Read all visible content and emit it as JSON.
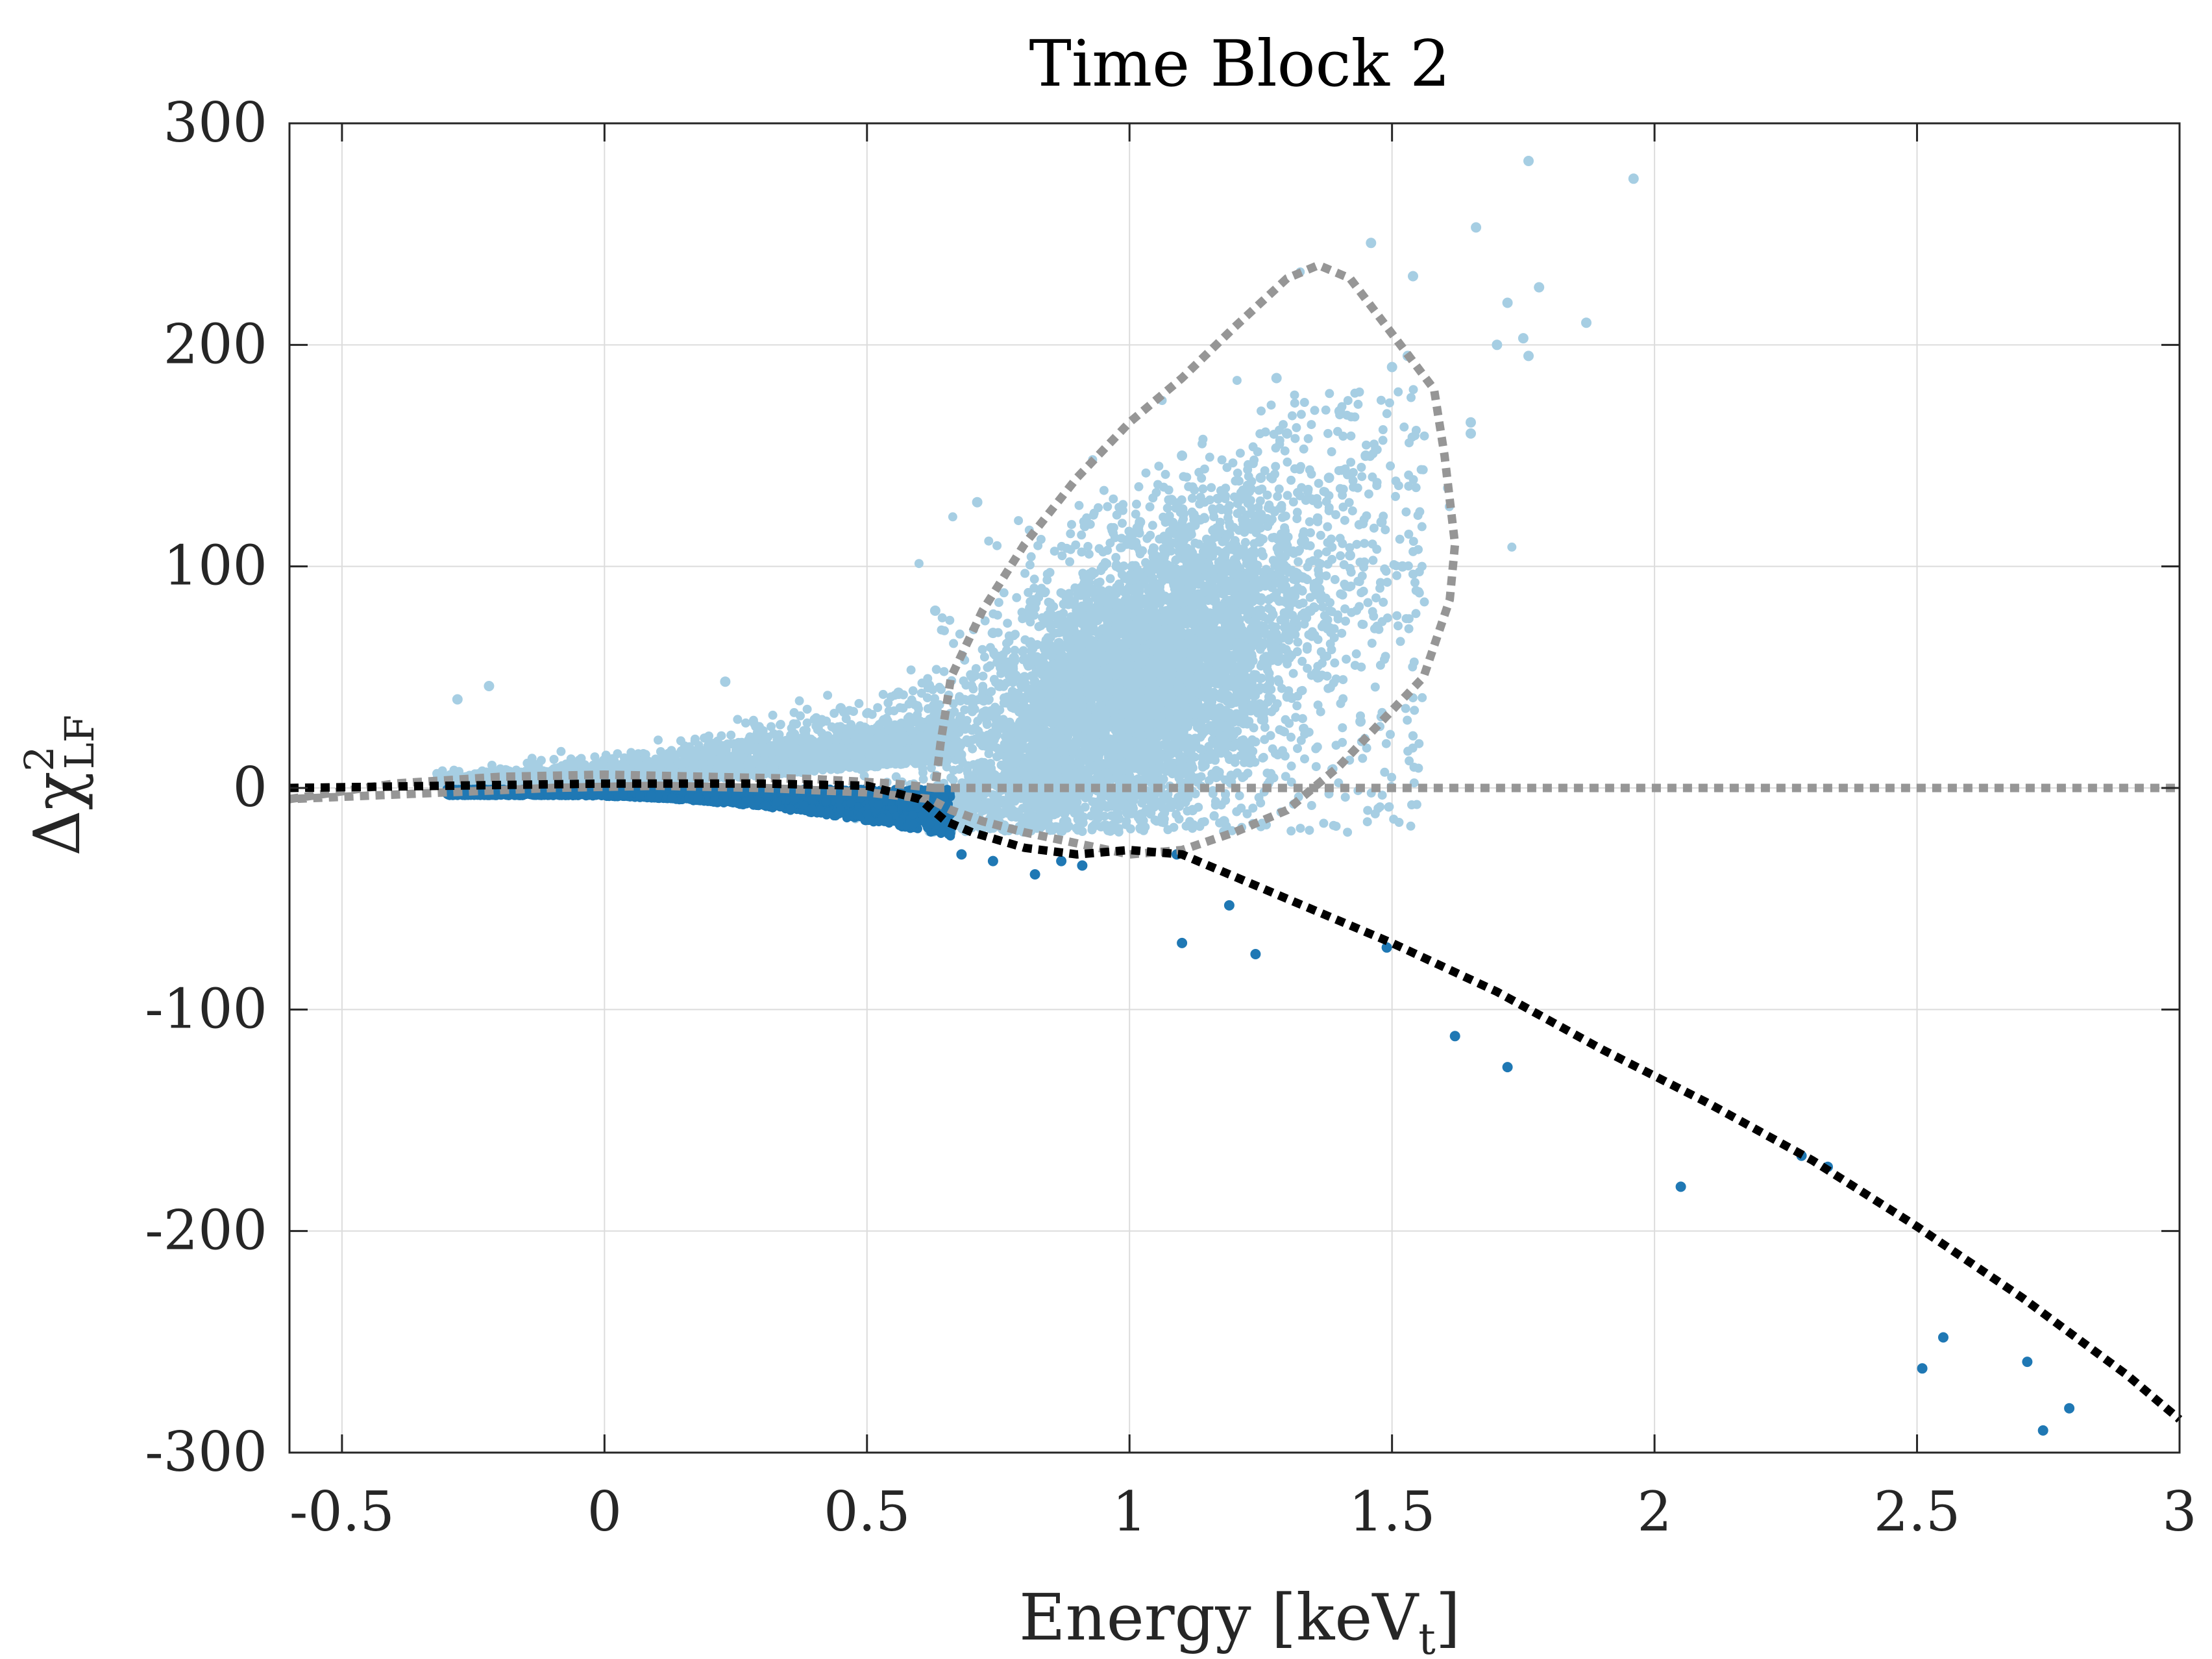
{
  "chart_data": {
    "type": "scatter",
    "title": "Time Block 2",
    "xlabel": "Energy [keV",
    "xlabel_subscript": "t",
    "xlabel_close": "]",
    "ylabel": "Δχ",
    "ylabel_superscript": "2",
    "ylabel_subscript": "LF",
    "xlim": [
      -0.6,
      3.0
    ],
    "ylim": [
      -300,
      300
    ],
    "xticks": [
      -0.5,
      0,
      0.5,
      1,
      1.5,
      2,
      2.5,
      3
    ],
    "xtick_labels": [
      "-0.5",
      "0",
      "0.5",
      "1",
      "1.5",
      "2",
      "2.5",
      "3"
    ],
    "yticks": [
      -300,
      -200,
      -100,
      0,
      100,
      200,
      300
    ],
    "ytick_labels": [
      "-300",
      "-200",
      "-100",
      "0",
      "100",
      "200",
      "300"
    ],
    "grid": true,
    "colors": {
      "light_points": "#a6cee3",
      "dark_points": "#1f78b4",
      "contour": "#969696",
      "cut_line": "#000000",
      "grid": "#dcdcdc",
      "axis": "#262626"
    },
    "series": [
      {
        "name": "accepted events (light blue)",
        "color": "#a6cee3",
        "x": [
          1.96,
          1.76,
          1.46,
          1.66,
          1.54,
          1.78,
          1.87,
          1.72,
          1.7,
          1.75,
          1.76,
          1.53,
          1.5,
          1.65,
          1.65,
          0.71,
          0.63,
          0.74,
          0.7,
          -0.22,
          0.23,
          -0.28,
          0.45,
          0.56,
          1.4,
          1.45,
          1.3,
          1.28,
          1.25,
          1.1,
          1.08,
          0.95,
          1.02,
          1.15,
          1.35,
          1.48,
          1.52,
          1.38,
          1.42,
          1.33,
          1.2,
          0.9,
          0.85,
          0.8,
          0.78,
          0.88,
          0.93,
          1.0,
          1.05,
          1.12,
          1.18,
          1.22,
          1.26,
          1.31,
          1.36,
          1.44,
          0.68,
          0.72,
          0.76,
          0.82
        ],
        "y": [
          275,
          283,
          246,
          253,
          231,
          226,
          210,
          219,
          200,
          203,
          195,
          195,
          190,
          165,
          160,
          129,
          80,
          70,
          40,
          46,
          48,
          40,
          36,
          43,
          170,
          150,
          160,
          185,
          140,
          150,
          130,
          100,
          120,
          110,
          130,
          120,
          100,
          140,
          105,
          95,
          90,
          80,
          60,
          50,
          40,
          30,
          20,
          10,
          0,
          -10,
          -15,
          60,
          45,
          70,
          50,
          30,
          -5,
          -10,
          10,
          20
        ]
      },
      {
        "name": "rejected events (dark blue)",
        "color": "#1f78b4",
        "x": [
          0.68,
          0.74,
          0.82,
          0.87,
          0.91,
          1.09,
          1.1,
          1.19,
          1.24,
          1.49,
          1.62,
          1.72,
          2.05,
          2.28,
          2.33,
          2.51,
          2.55,
          2.71,
          2.74,
          2.79
        ],
        "y": [
          -30,
          -33,
          -39,
          -33,
          -35,
          -30,
          -70,
          -53,
          -75,
          -72,
          -112,
          -126,
          -180,
          -166,
          -171,
          -262,
          -248,
          -259,
          -290,
          -280
        ]
      }
    ],
    "lines": [
      {
        "name": "contour region",
        "style": "dotted",
        "color": "#969696",
        "x": [
          -0.6,
          -0.4,
          -0.2,
          0.0,
          0.2,
          0.4,
          0.55,
          0.63,
          0.64,
          0.66,
          0.72,
          0.8,
          0.9,
          1.0,
          1.1,
          1.2,
          1.3,
          1.36,
          1.42,
          1.5,
          1.58,
          1.6,
          1.62,
          1.61,
          1.56,
          1.48,
          1.4,
          1.35,
          1.3,
          1.2,
          1.1,
          1.0,
          0.9,
          0.8,
          0.72,
          0.66,
          0.62,
          0.5,
          0.3,
          0.1,
          -0.1,
          -0.3,
          -0.5,
          -0.6
        ],
        "y": [
          -5,
          2,
          5,
          6,
          5,
          4,
          2,
          0,
          20,
          50,
          80,
          110,
          140,
          165,
          185,
          208,
          230,
          236,
          230,
          205,
          180,
          150,
          110,
          85,
          50,
          30,
          10,
          0,
          -10,
          -20,
          -28,
          -30,
          -25,
          -20,
          -15,
          -10,
          -5,
          -2,
          0,
          1,
          0,
          -2,
          -4,
          -5
        ]
      },
      {
        "name": "zero reference",
        "style": "dotted",
        "color": "#969696",
        "x": [
          0.63,
          3.0
        ],
        "y": [
          0,
          0
        ]
      },
      {
        "name": "cut boundary",
        "style": "dotted",
        "color": "#000000",
        "x": [
          -0.6,
          -0.3,
          0.0,
          0.3,
          0.5,
          0.6,
          0.65,
          0.7,
          0.8,
          0.9,
          1.0,
          1.1,
          1.3,
          1.5,
          1.7,
          1.9,
          2.1,
          2.3,
          2.5,
          2.7,
          2.9,
          3.0
        ],
        "y": [
          0,
          1,
          2,
          2,
          1,
          -5,
          -15,
          -20,
          -27,
          -30,
          -28,
          -30,
          -50,
          -70,
          -92,
          -118,
          -142,
          -168,
          -198,
          -230,
          -265,
          -285
        ]
      }
    ]
  }
}
